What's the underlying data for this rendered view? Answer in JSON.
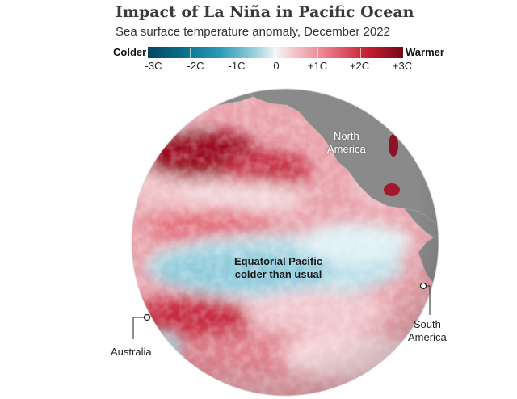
{
  "title": "Impact of La Niña in Pacific Ocean",
  "subtitle": "Sea surface temperature anomaly, December 2022",
  "legend": {
    "left_label": "Colder",
    "right_label": "Warmer",
    "ticks": [
      "-3C",
      "-2C",
      "-1C",
      "0",
      "+1C",
      "+2C",
      "+3C"
    ],
    "colors": [
      "#05465e",
      "#2a9ab7",
      "#f2f6f7",
      "#e86f7d",
      "#78051b"
    ]
  },
  "map": {
    "north_america": [
      "North",
      "America"
    ],
    "equatorial": [
      "Equatorial Pacific",
      "colder than usual"
    ],
    "south_america": [
      "South",
      "America"
    ],
    "australia": "Australia"
  }
}
